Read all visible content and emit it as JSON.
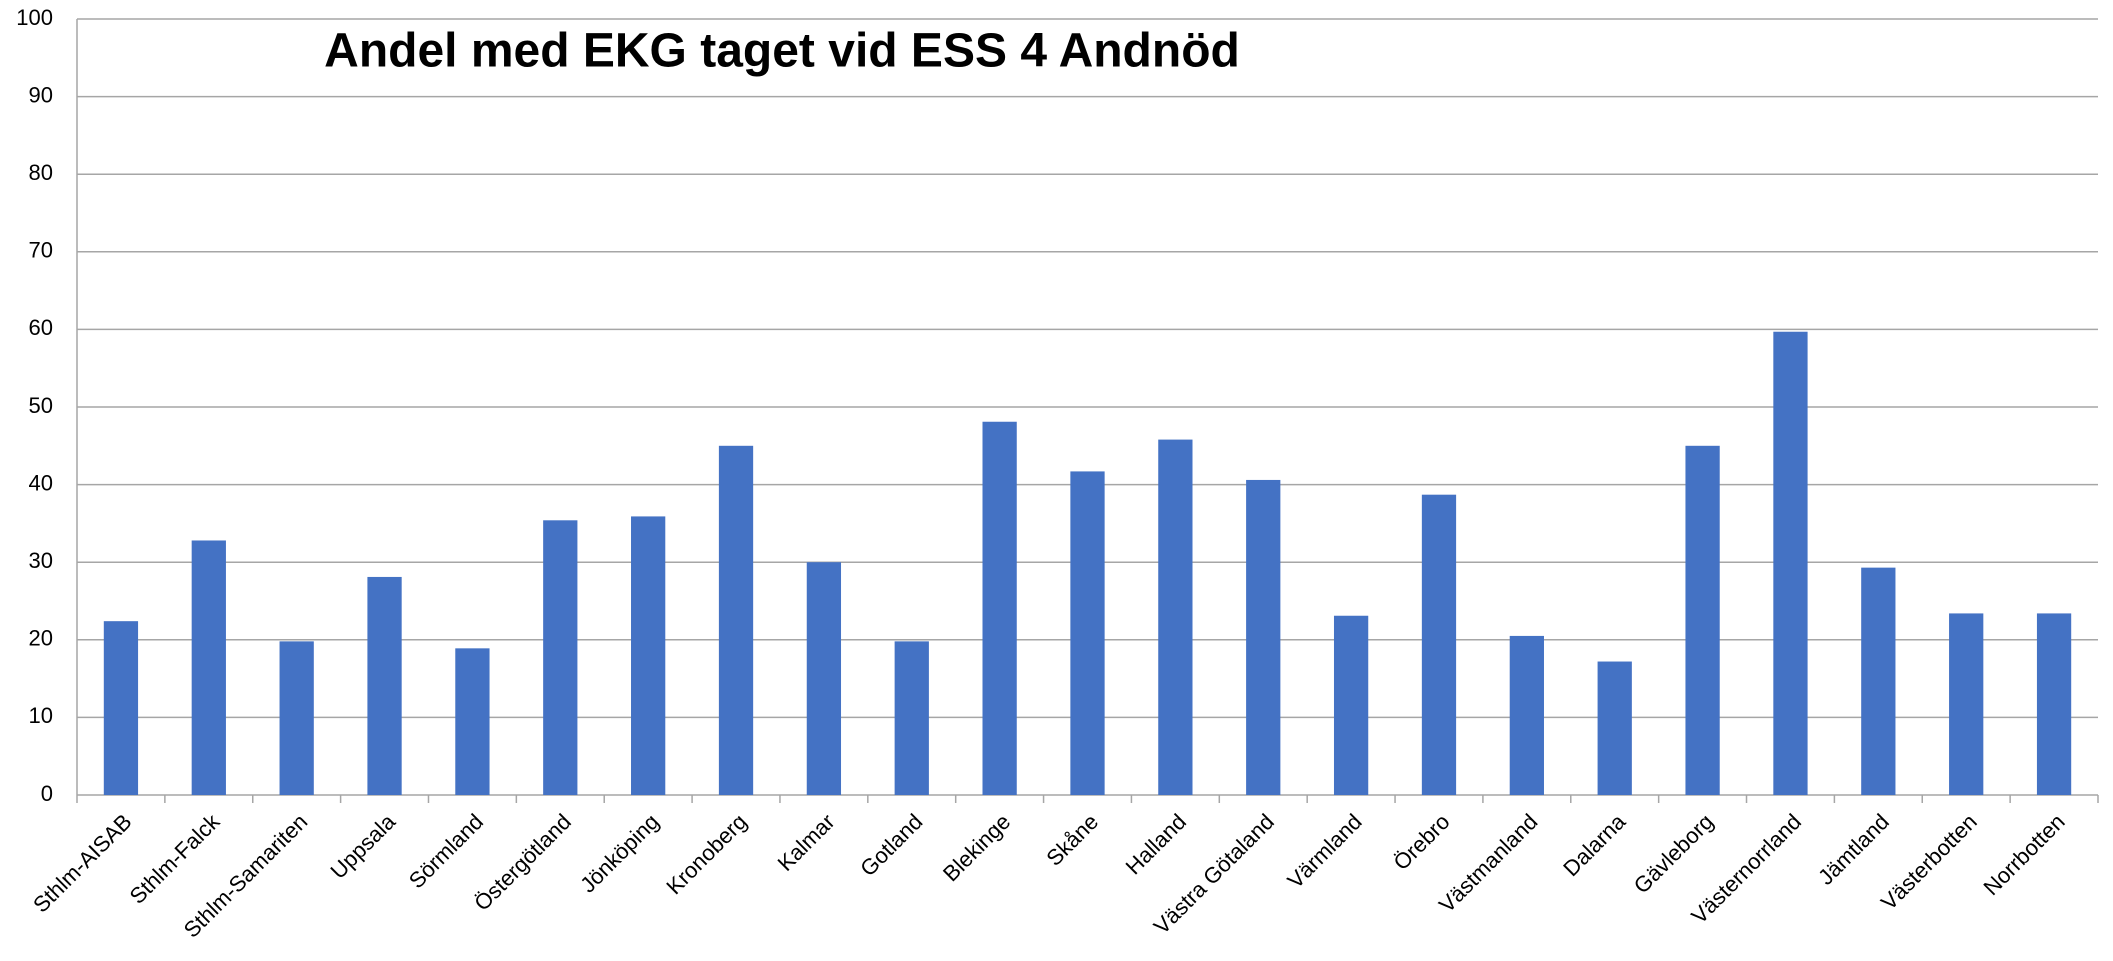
{
  "chart_data": {
    "type": "bar",
    "title": "Andel med EKG taget vid ESS 4 Andnöd",
    "categories": [
      "Sthlm-AISAB",
      "Sthlm-Falck",
      "Sthlm-Samariten",
      "Uppsala",
      "Sörmland",
      "Östergötland",
      "Jönköping",
      "Kronoberg",
      "Kalmar",
      "Gotland",
      "Blekinge",
      "Skåne",
      "Halland",
      "Västra Götaland",
      "Värmland",
      "Örebro",
      "Västmanland",
      "Dalarna",
      "Gävleborg",
      "Västernorrland",
      "Jämtland",
      "Västerbotten",
      "Norrbotten"
    ],
    "values": [
      22.4,
      32.8,
      19.8,
      28.1,
      18.9,
      35.4,
      35.9,
      45.0,
      30.0,
      19.8,
      48.1,
      41.7,
      45.8,
      40.6,
      23.1,
      38.7,
      20.5,
      17.2,
      45.0,
      59.7,
      29.3,
      23.4,
      23.4
    ],
    "color": "#4472c4",
    "ylim": [
      0,
      100
    ],
    "yticks": [
      0,
      10,
      20,
      30,
      40,
      50,
      60,
      70,
      80,
      90,
      100
    ],
    "grid": true
  }
}
